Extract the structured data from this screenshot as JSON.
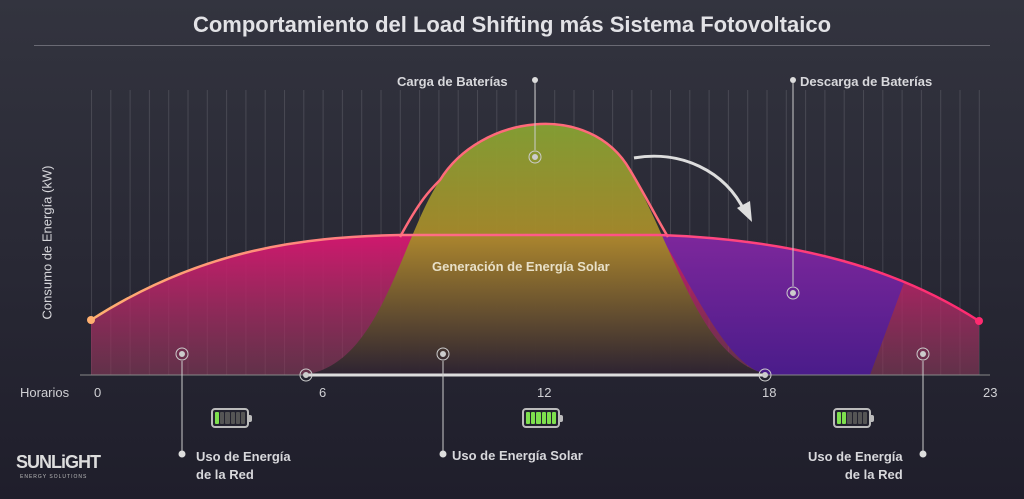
{
  "title": "Comportamiento del Load Shifting más Sistema Fotovoltaico",
  "y_axis_label": "Consumo de Energía (kW)",
  "x_axis_label": "Horarios",
  "x_ticks": [
    "0",
    "6",
    "12",
    "18",
    "23"
  ],
  "annotations": {
    "charge": "Carga de Baterías",
    "discharge": "Descarga de Baterías",
    "solar_gen": "Generación de Energía Solar"
  },
  "bottom_labels": {
    "left": [
      "Uso de Energía",
      "de la Red"
    ],
    "middle": "Uso de Energía Solar",
    "right": [
      "Uso de Energía",
      "de la Red"
    ]
  },
  "batteries": {
    "left_level": 1,
    "middle_level": 6,
    "right_level": 2,
    "segments": 6
  },
  "logo": {
    "name": "SUNLiGHT",
    "tagline": "ENERGY SOLUTIONS"
  },
  "colors": {
    "demand_curve": "#ff3d7f",
    "solar_curve": "#ff6a7a",
    "battery_on": "#7ee04e"
  }
}
